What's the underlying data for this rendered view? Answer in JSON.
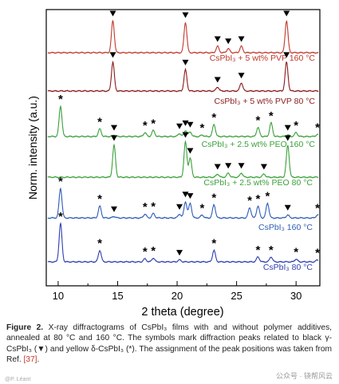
{
  "chart_data": {
    "type": "line",
    "xlabel": "2 theta (degree)",
    "ylabel": "Norm. intensity (a.u.)",
    "xlim": [
      9,
      32
    ],
    "xticks": [
      10,
      15,
      20,
      25,
      30
    ],
    "grid": false,
    "series": [
      {
        "name": "CsPbI₃ + 5 wt% PVP 160 °C",
        "color": "#c0392b",
        "peaks": [
          {
            "x": 14.6,
            "h": 1.0
          },
          {
            "x": 20.7,
            "h": 0.95
          },
          {
            "x": 23.4,
            "h": 0.2
          },
          {
            "x": 24.3,
            "h": 0.13
          },
          {
            "x": 25.4,
            "h": 0.2
          },
          {
            "x": 29.2,
            "h": 1.0
          }
        ],
        "markers": [
          {
            "x": 14.6,
            "sym": "tri"
          },
          {
            "x": 20.7,
            "sym": "tri"
          },
          {
            "x": 23.4,
            "sym": "tri"
          },
          {
            "x": 24.3,
            "sym": "tri"
          },
          {
            "x": 25.4,
            "sym": "tri"
          },
          {
            "x": 29.2,
            "sym": "tri"
          }
        ]
      },
      {
        "name": "CsPbI₃ + 5 wt% PVP 80 °C",
        "color": "#8b1a1a",
        "peaks": [
          {
            "x": 14.6,
            "h": 0.95
          },
          {
            "x": 20.7,
            "h": 0.7
          },
          {
            "x": 23.4,
            "h": 0.13
          },
          {
            "x": 25.4,
            "h": 0.27
          },
          {
            "x": 29.2,
            "h": 0.95
          }
        ],
        "markers": [
          {
            "x": 14.6,
            "sym": "tri"
          },
          {
            "x": 20.7,
            "sym": "tri"
          },
          {
            "x": 23.4,
            "sym": "tri"
          },
          {
            "x": 25.4,
            "sym": "tri"
          },
          {
            "x": 29.2,
            "sym": "tri"
          }
        ]
      },
      {
        "name": "CsPbI₃ + 2.5 wt% PEO 160 °C",
        "color": "#3aa03a",
        "peaks": [
          {
            "x": 10.2,
            "h": 1.0
          },
          {
            "x": 13.5,
            "h": 0.25
          },
          {
            "x": 14.7,
            "h": 0.05
          },
          {
            "x": 17.3,
            "h": 0.13
          },
          {
            "x": 18.0,
            "h": 0.2
          },
          {
            "x": 20.2,
            "h": 0.1
          },
          {
            "x": 20.7,
            "h": 0.2
          },
          {
            "x": 21.1,
            "h": 0.15
          },
          {
            "x": 22.1,
            "h": 0.05
          },
          {
            "x": 23.1,
            "h": 0.4
          },
          {
            "x": 26.8,
            "h": 0.3
          },
          {
            "x": 27.9,
            "h": 0.45
          },
          {
            "x": 29.3,
            "h": 0.05
          },
          {
            "x": 30.0,
            "h": 0.13
          },
          {
            "x": 31.8,
            "h": 0.07
          }
        ],
        "markers": [
          {
            "x": 10.2,
            "sym": "star"
          },
          {
            "x": 13.5,
            "sym": "star"
          },
          {
            "x": 14.7,
            "sym": "tri"
          },
          {
            "x": 17.3,
            "sym": "star"
          },
          {
            "x": 18.0,
            "sym": "star"
          },
          {
            "x": 20.2,
            "sym": "tri"
          },
          {
            "x": 20.7,
            "sym": "tri"
          },
          {
            "x": 21.1,
            "sym": "tri"
          },
          {
            "x": 22.1,
            "sym": "star"
          },
          {
            "x": 23.1,
            "sym": "star"
          },
          {
            "x": 26.8,
            "sym": "star"
          },
          {
            "x": 27.9,
            "sym": "star"
          },
          {
            "x": 29.3,
            "sym": "tri"
          },
          {
            "x": 30.0,
            "sym": "star"
          },
          {
            "x": 31.8,
            "sym": "star"
          }
        ]
      },
      {
        "name": "CsPbI₃ + 2.5 wt% PEO 80 °C",
        "color": "#3aa03a",
        "peaks": [
          {
            "x": 14.7,
            "h": 1.0
          },
          {
            "x": 20.7,
            "h": 1.1
          },
          {
            "x": 21.1,
            "h": 0.6
          },
          {
            "x": 23.4,
            "h": 0.1
          },
          {
            "x": 24.3,
            "h": 0.13
          },
          {
            "x": 25.4,
            "h": 0.13
          },
          {
            "x": 27.3,
            "h": 0.1
          },
          {
            "x": 29.3,
            "h": 1.0
          }
        ],
        "markers": [
          {
            "x": 14.7,
            "sym": "tri"
          },
          {
            "x": 20.7,
            "sym": "tri"
          },
          {
            "x": 21.1,
            "sym": "tri"
          },
          {
            "x": 23.4,
            "sym": "tri"
          },
          {
            "x": 24.3,
            "sym": "tri"
          },
          {
            "x": 25.4,
            "sym": "tri"
          },
          {
            "x": 27.3,
            "sym": "tri"
          },
          {
            "x": 29.3,
            "sym": "tri"
          }
        ]
      },
      {
        "name": "CsPbI₃ 160 °C",
        "color": "#2e5cb8",
        "peaks": [
          {
            "x": 10.2,
            "h": 1.0
          },
          {
            "x": 13.5,
            "h": 0.4
          },
          {
            "x": 14.7,
            "h": 0.05
          },
          {
            "x": 17.3,
            "h": 0.13
          },
          {
            "x": 18.0,
            "h": 0.15
          },
          {
            "x": 20.2,
            "h": 0.13
          },
          {
            "x": 20.7,
            "h": 0.55
          },
          {
            "x": 21.1,
            "h": 0.5
          },
          {
            "x": 22.1,
            "h": 0.1
          },
          {
            "x": 23.1,
            "h": 0.45
          },
          {
            "x": 26.1,
            "h": 0.35
          },
          {
            "x": 26.8,
            "h": 0.4
          },
          {
            "x": 27.6,
            "h": 0.5
          },
          {
            "x": 29.3,
            "h": 0.1
          },
          {
            "x": 31.8,
            "h": 0.1
          }
        ],
        "markers": [
          {
            "x": 10.2,
            "sym": "star"
          },
          {
            "x": 13.5,
            "sym": "star"
          },
          {
            "x": 14.7,
            "sym": "tri"
          },
          {
            "x": 17.3,
            "sym": "star"
          },
          {
            "x": 18.0,
            "sym": "star"
          },
          {
            "x": 20.2,
            "sym": "tri"
          },
          {
            "x": 20.7,
            "sym": "tri"
          },
          {
            "x": 21.1,
            "sym": "tri"
          },
          {
            "x": 22.1,
            "sym": "star"
          },
          {
            "x": 23.1,
            "sym": "star"
          },
          {
            "x": 26.1,
            "sym": "star"
          },
          {
            "x": 26.8,
            "sym": "star"
          },
          {
            "x": 27.6,
            "sym": "star"
          },
          {
            "x": 29.3,
            "sym": "tri"
          },
          {
            "x": 31.8,
            "sym": "star"
          }
        ]
      },
      {
        "name": "CsPbI₃ 80 °C",
        "color": "#2f3fae",
        "peaks": [
          {
            "x": 10.2,
            "h": 1.0
          },
          {
            "x": 13.5,
            "h": 0.3
          },
          {
            "x": 17.3,
            "h": 0.08
          },
          {
            "x": 18.0,
            "h": 0.1
          },
          {
            "x": 20.2,
            "h": 0.05
          },
          {
            "x": 23.1,
            "h": 0.3
          },
          {
            "x": 26.8,
            "h": 0.13
          },
          {
            "x": 27.9,
            "h": 0.13
          },
          {
            "x": 30.0,
            "h": 0.07
          },
          {
            "x": 31.8,
            "h": 0.05
          }
        ],
        "markers": [
          {
            "x": 10.2,
            "sym": "star"
          },
          {
            "x": 13.5,
            "sym": "star"
          },
          {
            "x": 17.3,
            "sym": "star"
          },
          {
            "x": 18.0,
            "sym": "star"
          },
          {
            "x": 20.2,
            "sym": "tri"
          },
          {
            "x": 23.1,
            "sym": "star"
          },
          {
            "x": 26.8,
            "sym": "star"
          },
          {
            "x": 27.9,
            "sym": "star"
          },
          {
            "x": 30.0,
            "sym": "star"
          },
          {
            "x": 31.8,
            "sym": "star"
          }
        ]
      }
    ]
  },
  "caption": {
    "label": "Figure 2.",
    "text_1": " X-ray diffractograms of CsPbI₃ films with and without polymer additives, annealed at 80 °C and 160 °C. The symbols mark diffraction peaks related to black γ-CsPbI₃ (▼) and yellow δ-CsPbI₃ (*). The assignment of the peak positions was taken from Ref. ",
    "ref": "[37]",
    "text_2": "."
  },
  "watermark": "公众号 · 铙帮风云",
  "watermark_left": "@P. Léant"
}
